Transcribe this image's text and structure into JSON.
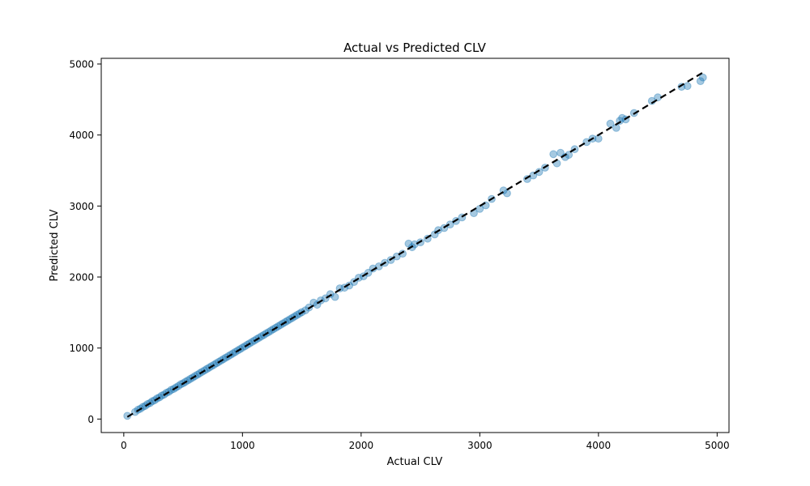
{
  "chart_data": {
    "type": "scatter",
    "title": "Actual vs Predicted CLV",
    "xlabel": "Actual CLV",
    "ylabel": "Predicted CLV",
    "xlim": [
      -190,
      5100
    ],
    "ylim": [
      -190,
      5080
    ],
    "xticks": [
      0,
      1000,
      2000,
      3000,
      4000,
      5000
    ],
    "yticks": [
      0,
      1000,
      2000,
      3000,
      4000,
      5000
    ],
    "xtick_labels": [
      "0",
      "1000",
      "2000",
      "3000",
      "4000",
      "5000"
    ],
    "ytick_labels": [
      "0",
      "1000",
      "2000",
      "3000",
      "4000",
      "5000"
    ],
    "grid": false,
    "legend": false,
    "reference_line": {
      "style": "dashed",
      "color": "#000000",
      "x": [
        30,
        4880
      ],
      "y": [
        30,
        4880
      ]
    },
    "series": [
      {
        "color": "#1f77b4",
        "x": [
          30,
          95,
          120,
          140,
          160,
          180,
          200,
          220,
          240,
          260,
          280,
          300,
          320,
          340,
          360,
          380,
          400,
          420,
          440,
          460,
          480,
          500,
          520,
          540,
          560,
          580,
          600,
          620,
          640,
          660,
          680,
          700,
          720,
          740,
          760,
          780,
          800,
          820,
          840,
          860,
          880,
          900,
          920,
          940,
          960,
          980,
          1000,
          1020,
          1040,
          1060,
          1080,
          1100,
          1120,
          1140,
          1160,
          1180,
          1200,
          1220,
          1240,
          1260,
          1280,
          1300,
          1320,
          1340,
          1360,
          1380,
          1400,
          1420,
          1440,
          1460,
          1480,
          1500,
          1530,
          1560,
          1600,
          1630,
          1660,
          1700,
          1740,
          1780,
          1820,
          1860,
          1900,
          1940,
          1980,
          2020,
          2060,
          2100,
          2150,
          2200,
          2250,
          2300,
          2350,
          2400,
          2430,
          2450,
          2500,
          2560,
          2620,
          2650,
          2700,
          2750,
          2800,
          2850,
          2950,
          3000,
          3050,
          3100,
          3200,
          3230,
          3400,
          3450,
          3500,
          3550,
          3620,
          3650,
          3680,
          3720,
          3750,
          3800,
          3900,
          3950,
          4000,
          4100,
          4150,
          4180,
          4200,
          4230,
          4300,
          4450,
          4500,
          4700,
          4750,
          4880,
          4860
        ],
        "y": [
          45,
          100,
          130,
          145,
          170,
          185,
          210,
          225,
          250,
          265,
          290,
          305,
          330,
          345,
          370,
          385,
          410,
          425,
          445,
          465,
          490,
          505,
          525,
          545,
          565,
          585,
          605,
          625,
          645,
          665,
          685,
          705,
          725,
          745,
          765,
          785,
          805,
          825,
          845,
          865,
          885,
          905,
          925,
          945,
          965,
          985,
          1005,
          1025,
          1045,
          1065,
          1085,
          1105,
          1125,
          1145,
          1165,
          1185,
          1205,
          1225,
          1245,
          1265,
          1285,
          1305,
          1325,
          1345,
          1365,
          1385,
          1405,
          1425,
          1445,
          1465,
          1485,
          1505,
          1530,
          1570,
          1640,
          1610,
          1670,
          1700,
          1760,
          1720,
          1840,
          1850,
          1880,
          1930,
          1990,
          2010,
          2060,
          2120,
          2150,
          2200,
          2240,
          2290,
          2330,
          2470,
          2420,
          2460,
          2490,
          2540,
          2600,
          2660,
          2690,
          2740,
          2790,
          2840,
          2900,
          2960,
          3010,
          3100,
          3220,
          3180,
          3380,
          3430,
          3480,
          3540,
          3730,
          3600,
          3750,
          3690,
          3720,
          3800,
          3900,
          3950,
          3950,
          4160,
          4100,
          4200,
          4240,
          4220,
          4310,
          4480,
          4530,
          4680,
          4690,
          4810,
          4760
        ]
      }
    ]
  }
}
